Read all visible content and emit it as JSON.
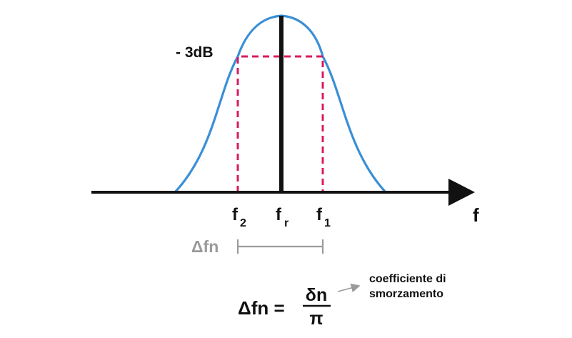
{
  "labels": {
    "db_marker": "- 3dB",
    "f2": "f",
    "f2_sub": "2",
    "fr": "f",
    "fr_sub": "r",
    "f1": "f",
    "f1_sub": "1",
    "axis": "f",
    "delta_fn": "Δfn"
  },
  "formula": {
    "lhs": "Δfn =",
    "numerator": "δn",
    "denominator": "π"
  },
  "note": {
    "line1": "coefficiente di",
    "line2": "smorzamento"
  },
  "colors": {
    "curve": "#3a8fd6",
    "cutoff": "#d81b60",
    "axis": "#111111",
    "bandwidth": "#9a9a9a"
  }
}
